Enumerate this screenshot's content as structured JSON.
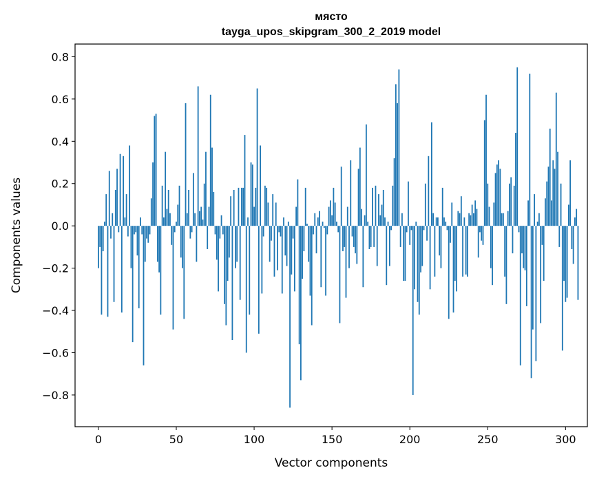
{
  "chart_data": {
    "type": "bar",
    "title": "място",
    "subtitle": "tayga_upos_skipgram_300_2_2019 model",
    "xlabel": "Vector components",
    "ylabel": "Components values",
    "xlim": [
      -15,
      314
    ],
    "ylim": [
      -0.95,
      0.86
    ],
    "xticks": [
      0,
      50,
      100,
      150,
      200,
      250,
      300
    ],
    "xtick_labels": [
      "0",
      "50",
      "100",
      "150",
      "200",
      "250",
      "300"
    ],
    "yticks": [
      -0.8,
      -0.6,
      -0.4,
      -0.2,
      0.0,
      0.2,
      0.4,
      0.6,
      0.8
    ],
    "ytick_labels": [
      "−0.8",
      "−0.6",
      "−0.4",
      "−0.2",
      "0.0",
      "0.2",
      "0.4",
      "0.6",
      "0.8"
    ],
    "grid": false,
    "bar_color": "#1f77b4",
    "series": [
      {
        "name": "място",
        "values": [
          -0.2,
          -0.1,
          -0.42,
          -0.12,
          0.02,
          0.15,
          -0.43,
          0.26,
          -0.06,
          0.06,
          -0.36,
          0.17,
          0.27,
          -0.03,
          0.34,
          -0.41,
          0.33,
          0.04,
          0.15,
          -0.05,
          0.38,
          -0.2,
          -0.55,
          -0.04,
          -0.03,
          -0.14,
          -0.39,
          0.04,
          -0.04,
          -0.66,
          -0.17,
          -0.06,
          -0.08,
          -0.04,
          0.13,
          0.3,
          0.52,
          0.53,
          -0.17,
          -0.22,
          -0.42,
          0.19,
          0.04,
          0.35,
          0.08,
          0.17,
          0.06,
          -0.09,
          -0.49,
          -0.03,
          0.02,
          0.1,
          0.19,
          -0.15,
          -0.2,
          -0.44,
          0.58,
          0.06,
          0.17,
          -0.06,
          -0.03,
          0.25,
          0.06,
          -0.17,
          0.66,
          0.07,
          0.09,
          0.03,
          0.2,
          0.35,
          -0.11,
          0.09,
          0.62,
          0.37,
          0.16,
          -0.04,
          -0.16,
          -0.31,
          -0.06,
          0.05,
          -0.04,
          -0.37,
          -0.47,
          -0.26,
          -0.15,
          0.14,
          -0.54,
          0.17,
          -0.2,
          -0.17,
          0.18,
          -0.35,
          0.18,
          0.18,
          0.43,
          -0.6,
          0.04,
          -0.42,
          0.3,
          0.29,
          0.09,
          0.18,
          0.65,
          -0.51,
          0.38,
          -0.32,
          -0.05,
          0.19,
          0.18,
          0.11,
          -0.17,
          -0.07,
          0.15,
          -0.24,
          0.11,
          -0.21,
          -0.03,
          -0.05,
          -0.32,
          0.04,
          -0.14,
          -0.19,
          0.02,
          -0.86,
          -0.23,
          -0.06,
          -0.31,
          0.09,
          0.22,
          -0.56,
          -0.73,
          -0.25,
          -0.12,
          0.18,
          0.01,
          -0.17,
          -0.33,
          -0.47,
          -0.04,
          0.06,
          -0.13,
          0.04,
          0.07,
          -0.29,
          0.02,
          -0.01,
          -0.33,
          -0.04,
          0.09,
          0.12,
          0.05,
          0.18,
          0.11,
          0.02,
          -0.03,
          -0.46,
          0.28,
          -0.12,
          -0.1,
          -0.34,
          0.09,
          -0.2,
          0.31,
          -0.05,
          -0.1,
          -0.13,
          -0.18,
          0.27,
          0.37,
          0.08,
          -0.29,
          0.05,
          0.48,
          0.02,
          -0.11,
          -0.1,
          0.18,
          -0.1,
          0.19,
          -0.19,
          0.15,
          0.05,
          0.1,
          0.17,
          0.04,
          -0.28,
          0.02,
          -0.19,
          -0.02,
          0.19,
          0.32,
          0.67,
          0.58,
          0.74,
          -0.1,
          0.06,
          -0.26,
          -0.26,
          -0.03,
          0.21,
          -0.09,
          -0.02,
          -0.8,
          -0.3,
          0.02,
          -0.36,
          -0.42,
          -0.22,
          -0.19,
          -0.02,
          0.2,
          -0.07,
          0.33,
          -0.3,
          0.49,
          0.06,
          -0.24,
          0.04,
          0.04,
          -0.14,
          -0.2,
          0.18,
          0.04,
          0.02,
          -0.02,
          -0.44,
          -0.08,
          0.11,
          -0.41,
          -0.26,
          -0.31,
          0.07,
          0.06,
          0.14,
          -0.24,
          0.04,
          -0.23,
          -0.24,
          0.06,
          0.05,
          0.1,
          0.06,
          0.12,
          0.08,
          -0.15,
          -0.03,
          -0.07,
          -0.09,
          0.5,
          0.62,
          0.2,
          0.09,
          -0.2,
          -0.28,
          0.11,
          0.25,
          0.29,
          0.31,
          0.27,
          0.06,
          0.06,
          -0.24,
          -0.37,
          0.07,
          0.2,
          0.23,
          -0.13,
          0.19,
          0.44,
          0.75,
          -0.03,
          -0.66,
          -0.13,
          -0.2,
          -0.21,
          -0.38,
          0.12,
          0.72,
          -0.72,
          -0.49,
          0.15,
          -0.64,
          0.02,
          0.06,
          -0.46,
          -0.09,
          -0.26,
          0.13,
          0.21,
          0.28,
          0.46,
          0.12,
          0.31,
          0.27,
          0.63,
          0.35,
          -0.1,
          0.2,
          -0.59,
          -0.26,
          -0.36,
          -0.34,
          0.1,
          0.31,
          -0.11,
          -0.18,
          0.04,
          0.08,
          -0.35
        ]
      }
    ]
  }
}
